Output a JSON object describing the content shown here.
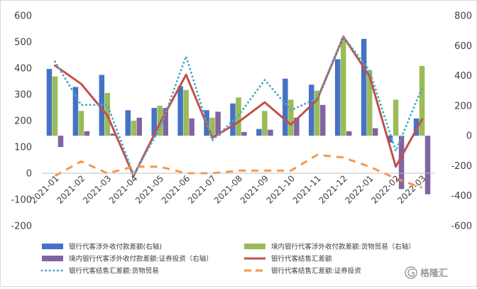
{
  "chart_data": {
    "type": "bar",
    "categories": [
      "2021-01",
      "2021-02",
      "2021-03",
      "2021-04",
      "2021-05",
      "2021-06",
      "2021-07",
      "2021-08",
      "2021-09",
      "2021-10",
      "2021-11",
      "2021-12",
      "2022-01",
      "2022-02",
      "2022-03"
    ],
    "y_left": {
      "lim": [
        -200,
        600
      ],
      "ticks": [
        "600",
        "500",
        "400",
        "300",
        "200",
        "100",
        "0",
        "-100",
        "-200"
      ]
    },
    "y_right": {
      "lim": [
        -600,
        800
      ],
      "ticks": [
        "800",
        "600",
        "400",
        "200",
        "0",
        "-200",
        "-400",
        "-600"
      ]
    },
    "grid": false,
    "legend_position": "bottom",
    "series": [
      {
        "name": "银行代客涉外收付款差额(右轴)",
        "type": "bar",
        "axis": "right",
        "color": "#4472c4",
        "values": [
          445,
          325,
          405,
          170,
          185,
          330,
          170,
          215,
          45,
          380,
          340,
          510,
          645,
          -45,
          115
        ]
      },
      {
        "name": "境内银行代客涉外收付款差额:货物贸易（右轴）",
        "type": "bar",
        "axis": "right",
        "color": "#9bbb59",
        "values": [
          395,
          165,
          285,
          100,
          200,
          305,
          120,
          255,
          165,
          240,
          300,
          645,
          435,
          240,
          465
        ]
      },
      {
        "name": "境内银行代客涉外收付款差额:证券投资（右轴）",
        "type": "bar",
        "axis": "right",
        "color": "#8064a2",
        "values": [
          -75,
          30,
          15,
          120,
          185,
          115,
          160,
          25,
          40,
          120,
          205,
          30,
          50,
          -355,
          -390
        ]
      },
      {
        "name": "银行代客结售汇差额",
        "type": "line",
        "axis": "left",
        "color": "#c0504d",
        "dash": "solid",
        "values": [
          410,
          340,
          220,
          -10,
          190,
          375,
          135,
          195,
          270,
          185,
          280,
          520,
          370,
          25,
          205
        ]
      },
      {
        "name": "银行代客结售汇差额:货物贸易",
        "type": "line",
        "axis": "left",
        "color": "#4bacc6",
        "dash": "dotted",
        "values": [
          425,
          260,
          260,
          -5,
          170,
          445,
          125,
          220,
          355,
          240,
          285,
          520,
          390,
          85,
          325
        ]
      },
      {
        "name": "银行代客结售汇差额:证券投资",
        "type": "line",
        "axis": "left",
        "color": "#f79646",
        "dash": "dashed",
        "values": [
          -10,
          45,
          0,
          25,
          25,
          0,
          0,
          10,
          10,
          10,
          70,
          60,
          25,
          -20,
          -55
        ]
      }
    ]
  },
  "brand": {
    "text": "格隆汇"
  }
}
